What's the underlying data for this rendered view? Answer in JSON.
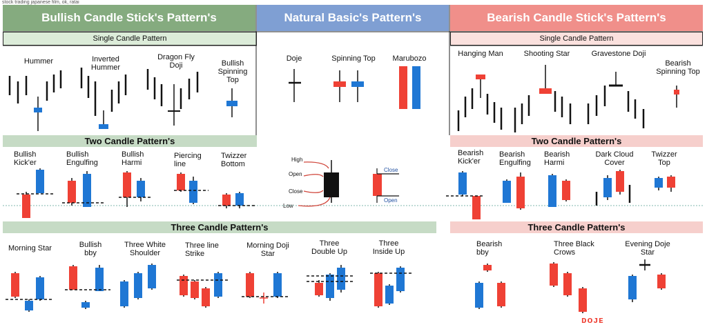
{
  "caption": "stock trading japanese film, ok, ratai",
  "headers": {
    "bullish": "Bullish Candle Stick's Pattern's",
    "natural": "Natural Basic's  Pattern's",
    "bearish": "Bearish Candle Stick's Pattern's"
  },
  "colors": {
    "bullish_header": "#85ab7f",
    "natural_header": "#7f9fd3",
    "bearish_header": "#f08f8a",
    "green_bar": "#c6dbc5",
    "pink_bar": "#f6cfcc",
    "red": "#ef4135",
    "blue": "#1f77d4",
    "black": "#111111"
  },
  "bullish": {
    "single_title": "Single Candle Pattern",
    "single": [
      "Hummer",
      "Inverted\nHummer",
      "Dragon Fly\nDoji",
      "Bullish\nSpinning\nTop"
    ],
    "two_title": "Two Candle Pattern's",
    "two": [
      "Bullish\nKick'er",
      "Bullish\nEngulfing",
      "Bullish\nHarmi",
      "Piercing\nline",
      "Twizzer\nBottom"
    ],
    "three_title": "Three Candle Pattern's",
    "three": [
      "Morning Star",
      "Bullish\nbby",
      "Three White\nShoulder",
      "Three line\nStrike",
      "Morning Doji\nStar",
      "Three\nDouble Up",
      "Three\nInside Up"
    ]
  },
  "natural": {
    "single": [
      "Doje",
      "Spinning Top",
      "Marubozo"
    ],
    "diagram": {
      "high": "High",
      "open": "Open",
      "close": "Close",
      "low": "Low",
      "close_right": "Close",
      "open_right": "Open"
    }
  },
  "bearish": {
    "single_title": "Single Candle Pattern",
    "single": [
      "Hanging Man",
      "Shooting Star",
      "Gravestone Doji",
      "Bearish\nSpinning Top"
    ],
    "two_title": "Two Candle Pattern's",
    "two": [
      "Bearish\nKick'er",
      "Bearish\nEngulfing",
      "Bearish\nHarmi",
      "Dark Cloud\nCover",
      "Twizzer\nTop"
    ],
    "three_title": "Three Candle Pattern's",
    "three": [
      "Bearish\nbby",
      "Three Black\nCrows",
      "Evening Doje\nStar"
    ]
  },
  "watermark": "ᴅᴏᴊᴇ"
}
